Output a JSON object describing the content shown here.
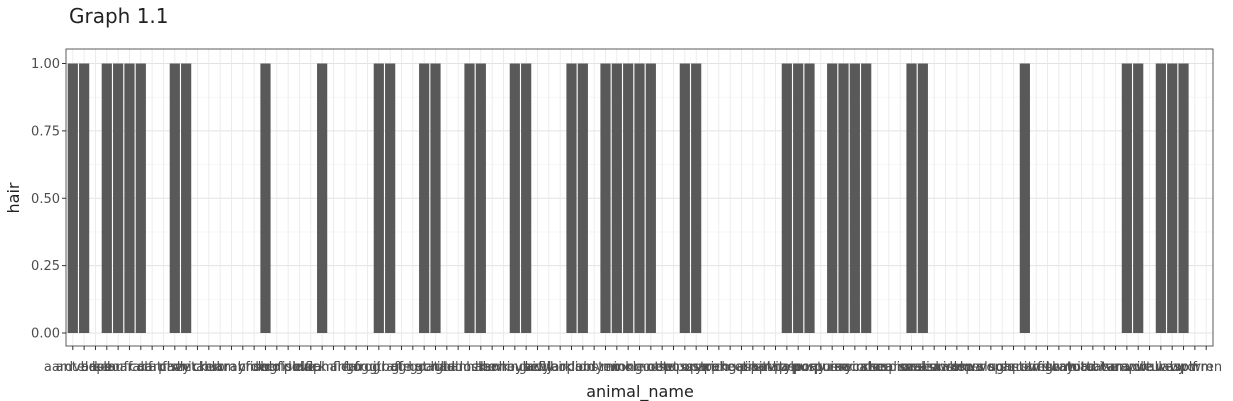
{
  "chart_data": {
    "type": "bar",
    "title": "Graph 1.1",
    "xlabel": "animal_name",
    "ylabel": "hair",
    "ylim": [
      0,
      1
    ],
    "yticks": [
      "0.00",
      "0.25",
      "0.50",
      "0.75",
      "1.00"
    ],
    "grid": true,
    "categories": [
      "aardvark",
      "antelope",
      "bass",
      "bear",
      "boar",
      "buffalo",
      "calf",
      "carp",
      "catfish",
      "cavy",
      "cheetah",
      "chicken",
      "chub",
      "clam",
      "crab",
      "crayfish",
      "crow",
      "deer",
      "dogfish",
      "dolphin",
      "dove",
      "duck",
      "elephant",
      "flamingo",
      "flea",
      "frog",
      "frog",
      "fruitbat",
      "giraffe",
      "girl",
      "gnat",
      "goat",
      "gorilla",
      "gull",
      "haddock",
      "hamster",
      "hare",
      "hawk",
      "herring",
      "honeybee",
      "housefly",
      "kiwi",
      "ladybird",
      "lark",
      "leopard",
      "lion",
      "lobster",
      "lynx",
      "mink",
      "mole",
      "mongoose",
      "moth",
      "newt",
      "octopus",
      "opossum",
      "oryx",
      "ostrich",
      "parakeet",
      "penguin",
      "pheasant",
      "pike",
      "piranha",
      "pitviper",
      "platypus",
      "polecat",
      "pony",
      "porpoise",
      "puma",
      "pussycat",
      "raccoon",
      "reindeer",
      "rhea",
      "scorpion",
      "seahorse",
      "seal",
      "sealion",
      "seasnake",
      "seawasp",
      "skimmer",
      "skua",
      "slowworm",
      "slug",
      "sole",
      "sparrow",
      "squirrel",
      "starfish",
      "stingray",
      "swan",
      "termite",
      "toad",
      "tortoise",
      "tuatara",
      "tuna",
      "vampire",
      "vole",
      "vulture",
      "wallaby",
      "wasp",
      "wolf",
      "worm",
      "wren"
    ],
    "values": [
      1,
      1,
      0,
      1,
      1,
      1,
      1,
      0,
      0,
      1,
      1,
      0,
      0,
      0,
      0,
      0,
      0,
      1,
      0,
      0,
      0,
      0,
      1,
      0,
      0,
      0,
      0,
      1,
      1,
      0,
      0,
      1,
      1,
      0,
      0,
      1,
      1,
      0,
      0,
      1,
      1,
      0,
      0,
      0,
      1,
      1,
      0,
      1,
      1,
      1,
      1,
      1,
      0,
      0,
      1,
      1,
      0,
      0,
      0,
      0,
      0,
      0,
      0,
      1,
      1,
      1,
      0,
      1,
      1,
      1,
      1,
      0,
      0,
      0,
      1,
      1,
      0,
      0,
      0,
      0,
      0,
      0,
      0,
      0,
      1,
      0,
      0,
      0,
      0,
      0,
      0,
      0,
      0,
      1,
      1,
      0,
      1,
      1,
      1,
      0,
      0
    ]
  }
}
